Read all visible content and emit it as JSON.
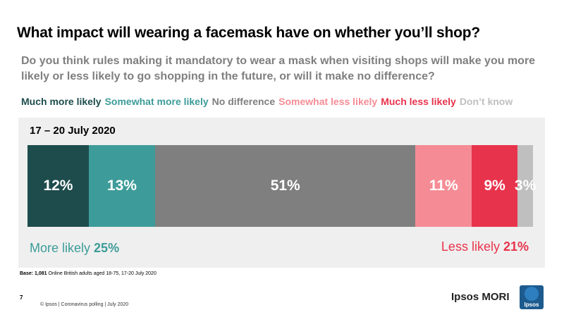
{
  "title": "What impact will wearing a facemask have on whether you’ll shop?",
  "subtitle": "Do you think rules making it mandatory to wear a mask when visiting shops will make you more likely or less likely to go shopping in the future, or will it make no difference?",
  "period_label": "17 – 20 July 2020",
  "net": {
    "more_label": "More likely",
    "more_value": "25%",
    "less_label": "Less likely",
    "less_value": "21%"
  },
  "footer": {
    "base_label": "Base:",
    "base_text": "1,081 Online British adults aged 18-75, 17-20 July 2020",
    "page_number": "7",
    "credit": "© Ipsos | Coronavirus polling | July 2020",
    "brand_name": "Ipsos MORI",
    "logo_text": "Ipsos"
  },
  "colors": {
    "much_more": "#1e4c4c",
    "somewhat_more": "#3d9c99",
    "no_difference": "#7f7f7f",
    "somewhat_less": "#f58c95",
    "much_less": "#e8334c",
    "dont_know": "#bfbfbf",
    "logo_bg": "#1d5b8f"
  },
  "chart_data": {
    "type": "bar",
    "orientation": "horizontal",
    "stacked": true,
    "categories": [
      "17 – 20 July 2020"
    ],
    "series": [
      {
        "name": "Much more likely",
        "values": [
          12
        ],
        "label": "12%",
        "color": "#1e4c4c"
      },
      {
        "name": "Somewhat more likely",
        "values": [
          13
        ],
        "label": "13%",
        "color": "#3d9c99"
      },
      {
        "name": "No difference",
        "values": [
          51
        ],
        "label": "51%",
        "color": "#7f7f7f"
      },
      {
        "name": "Somewhat less likely",
        "values": [
          11
        ],
        "label": "11%",
        "color": "#f58c95"
      },
      {
        "name": "Much less likely",
        "values": [
          9
        ],
        "label": "9%",
        "color": "#e8334c"
      },
      {
        "name": "Don’t know",
        "values": [
          3
        ],
        "label": "3%",
        "color": "#bfbfbf"
      }
    ],
    "legend_position": "top",
    "grid": false
  }
}
